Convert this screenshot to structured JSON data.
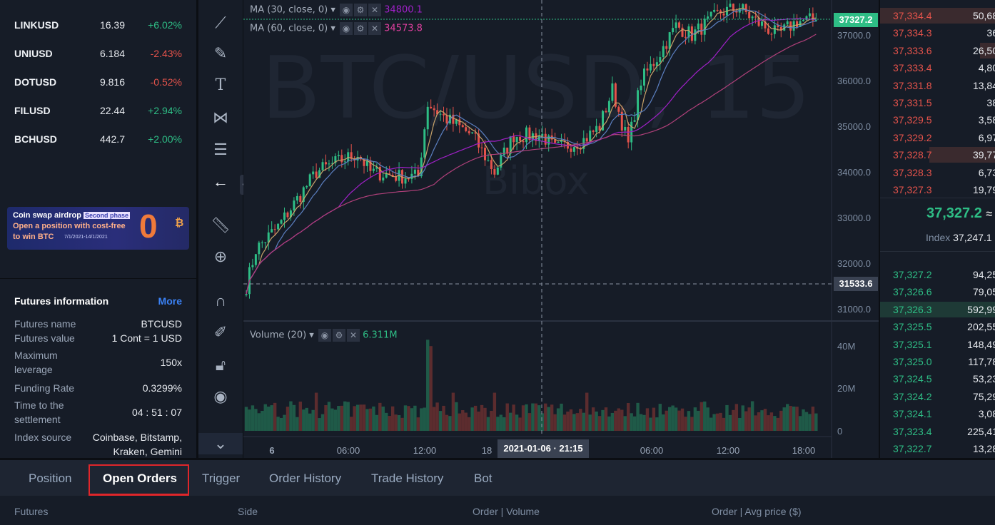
{
  "markets": [
    {
      "symbol": "LINKUSD",
      "price": "16.39",
      "change": "+6.02%",
      "dir": "up"
    },
    {
      "symbol": "UNIUSD",
      "price": "6.184",
      "change": "-2.43%",
      "dir": "dn"
    },
    {
      "symbol": "DOTUSD",
      "price": "9.816",
      "change": "-0.52%",
      "dir": "dn"
    },
    {
      "symbol": "FILUSD",
      "price": "22.44",
      "change": "+2.94%",
      "dir": "up"
    },
    {
      "symbol": "BCHUSD",
      "price": "442.7",
      "change": "+2.00%",
      "dir": "up"
    }
  ],
  "banner": {
    "line1": "Coin swap airdrop",
    "badge": "Second phase",
    "line2": "Open a position with cost-free",
    "line3": "to win BTC",
    "dates": "7/1/2021-14/1/2021",
    "big": "0"
  },
  "futures_info": {
    "title": "Futures information",
    "more": "More",
    "rows": [
      {
        "label": "Futures name",
        "value": "BTCUSD"
      },
      {
        "label": "Futures value",
        "value": "1 Cont = 1 USD"
      },
      {
        "label": "Maximum\nleverage",
        "value": "150x"
      },
      {
        "label": "Funding Rate",
        "value": "0.3299%"
      },
      {
        "label": "Time to the\nsettlement",
        "value": "04 : 51 : 07"
      },
      {
        "label": "Index source",
        "value": "Coinbase, Bitstamp,\nKraken, Gemini"
      }
    ]
  },
  "chart": {
    "watermark": "BTC/USD, 15",
    "watermark2": "Bibox",
    "ma30_label": "MA (30, close, 0)",
    "ma30_value": "34800.1",
    "ma60_label": "MA (60, close, 0)",
    "ma60_value": "34573.8",
    "volume_label": "Volume (20)",
    "volume_value": "6.311M",
    "last_price": "37327.2",
    "crosshair_price": "31533.6",
    "crosshair_time": "2021-01-06 · 21:15",
    "price_ticks": [
      "37000.0",
      "36000.0",
      "35000.0",
      "34000.0",
      "33000.0",
      "32000.0",
      "31000.0"
    ],
    "volume_ticks": [
      "40M",
      "20M",
      "0"
    ],
    "time_ticks": [
      "6",
      "06:00",
      "12:00",
      "18",
      "06:00",
      "12:00",
      "18:00"
    ],
    "colors": {
      "up": "#2ebd85",
      "down": "#e5534b",
      "ma30": "#a020c8",
      "ma60": "#e040a0"
    },
    "price_path": [
      [
        0,
        31500
      ],
      [
        3,
        32300
      ],
      [
        10,
        32800
      ],
      [
        17,
        33500
      ],
      [
        22,
        34000
      ],
      [
        28,
        34200
      ],
      [
        35,
        34400
      ],
      [
        39,
        34000
      ],
      [
        48,
        33900
      ],
      [
        54,
        33900
      ],
      [
        57,
        35500
      ],
      [
        62,
        35200
      ],
      [
        71,
        34800
      ],
      [
        78,
        34000
      ],
      [
        84,
        34800
      ],
      [
        93,
        34800
      ],
      [
        97,
        34500
      ],
      [
        106,
        34700
      ],
      [
        111,
        35000
      ],
      [
        115,
        35800
      ],
      [
        120,
        34600
      ],
      [
        124,
        36000
      ],
      [
        129,
        36500
      ],
      [
        135,
        37200
      ],
      [
        140,
        37000
      ],
      [
        149,
        37500
      ],
      [
        155,
        37600
      ],
      [
        160,
        37300
      ],
      [
        167,
        37000
      ],
      [
        173,
        37300
      ],
      [
        179,
        37327
      ]
    ]
  },
  "orderbook": {
    "asks": [
      [
        "37,334.4",
        "50,68"
      ],
      [
        "37,334.3",
        "36"
      ],
      [
        "37,333.6",
        "26,50"
      ],
      [
        "37,333.4",
        "4,80"
      ],
      [
        "37,331.8",
        "13,84"
      ],
      [
        "37,331.5",
        "38"
      ],
      [
        "37,329.5",
        "3,58"
      ],
      [
        "37,329.2",
        "6,97"
      ],
      [
        "37,328.7",
        "39,77"
      ],
      [
        "37,328.3",
        "6,73"
      ],
      [
        "37,327.3",
        "19,79"
      ]
    ],
    "mid_price": "37,327.2",
    "approx": "≈",
    "index_label": "Index",
    "index_value": "37,247.1",
    "bids": [
      [
        "37,327.2",
        "94,25"
      ],
      [
        "37,326.6",
        "79,05"
      ],
      [
        "37,326.3",
        "592,99"
      ],
      [
        "37,325.5",
        "202,55"
      ],
      [
        "37,325.1",
        "148,49"
      ],
      [
        "37,325.0",
        "117,78"
      ],
      [
        "37,324.5",
        "53,23"
      ],
      [
        "37,324.2",
        "75,29"
      ],
      [
        "37,324.1",
        "3,08"
      ],
      [
        "37,323.4",
        "225,41"
      ],
      [
        "37,322.7",
        "13,28"
      ]
    ]
  },
  "tabs": [
    "Position",
    "Open Orders",
    "Trigger",
    "Order History",
    "Trade History",
    "Bot"
  ],
  "active_tab": "Open Orders",
  "columns": [
    "Futures",
    "Side",
    "Order | Volume",
    "Order | Avg price ($)"
  ]
}
